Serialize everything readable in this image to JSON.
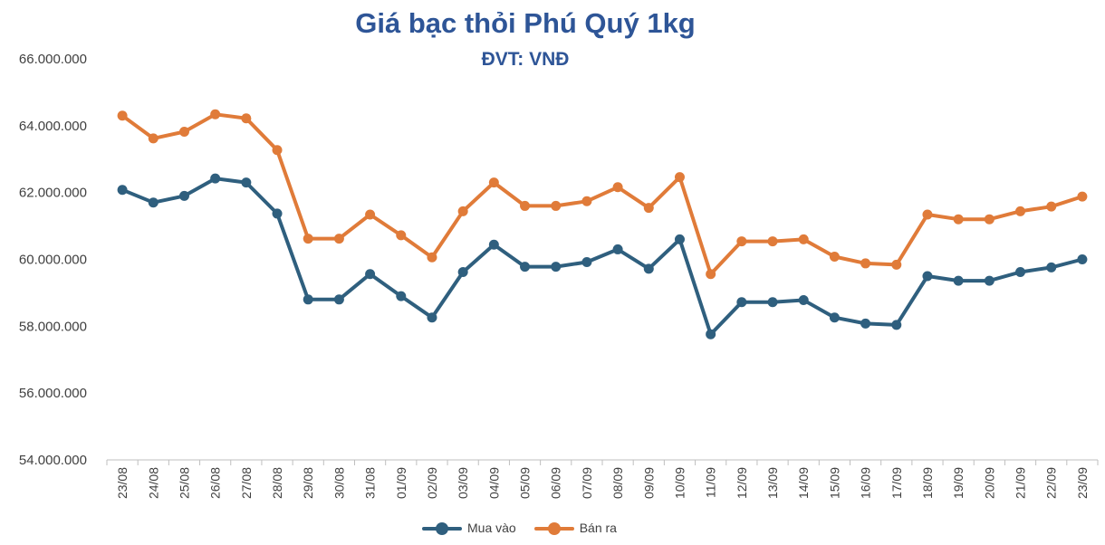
{
  "chart_data": {
    "type": "line",
    "title": "Giá bạc thỏi Phú Quý 1kg",
    "subtitle": "ĐVT: VNĐ",
    "categories": [
      "23/08",
      "24/08",
      "25/08",
      "26/08",
      "27/08",
      "28/08",
      "29/08",
      "30/08",
      "31/08",
      "01/09",
      "02/09",
      "03/09",
      "04/09",
      "05/09",
      "06/09",
      "07/09",
      "08/09",
      "09/09",
      "10/09",
      "11/09",
      "12/09",
      "13/09",
      "14/09",
      "15/09",
      "16/09",
      "17/09",
      "18/09",
      "19/09",
      "20/09",
      "21/09",
      "22/09",
      "23/09"
    ],
    "series": [
      {
        "name": "Mua vào",
        "color": "#2f5f7e",
        "values": [
          62080000,
          61700000,
          61900000,
          62420000,
          62300000,
          61370000,
          58800000,
          58800000,
          59560000,
          58900000,
          58260000,
          59620000,
          60440000,
          59780000,
          59780000,
          59920000,
          60300000,
          59720000,
          60600000,
          57760000,
          58720000,
          58720000,
          58780000,
          58260000,
          58080000,
          58040000,
          59500000,
          59360000,
          59360000,
          59620000,
          59760000,
          60000000
        ]
      },
      {
        "name": "Bán ra",
        "color": "#e07b39",
        "values": [
          64300000,
          63620000,
          63820000,
          64340000,
          64220000,
          63270000,
          60620000,
          60620000,
          61340000,
          60720000,
          60060000,
          61440000,
          62300000,
          61600000,
          61600000,
          61740000,
          62160000,
          61540000,
          62460000,
          59560000,
          60540000,
          60540000,
          60600000,
          60080000,
          59880000,
          59840000,
          61340000,
          61200000,
          61200000,
          61440000,
          61580000,
          61880000
        ]
      }
    ],
    "y_ticks": [
      "54.000.000",
      "56.000.000",
      "58.000.000",
      "60.000.000",
      "62.000.000",
      "64.000.000",
      "66.000.000"
    ],
    "ylim": [
      54000000,
      66000000
    ],
    "grid": false,
    "legend_position": "bottom"
  }
}
